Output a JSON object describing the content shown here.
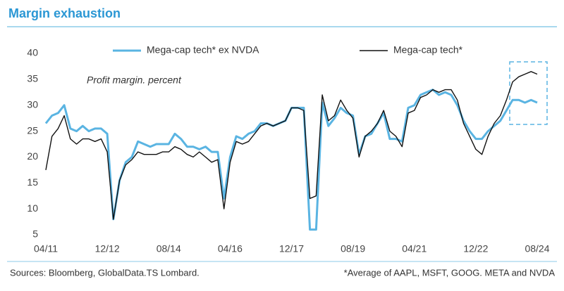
{
  "chart_data": {
    "type": "line",
    "title": "Margin exhaustion",
    "annotation": "Profit margin. percent",
    "source": "Sources: Bloomberg, GlobalData.TS Lombard.",
    "footnote": "*Average of AAPL, MSFT, GOOG. META and NVDA",
    "categories": [
      "04/11",
      null,
      null,
      null,
      null,
      null,
      null,
      null,
      null,
      null,
      "12/12",
      null,
      null,
      null,
      null,
      null,
      null,
      null,
      null,
      null,
      "08/14",
      null,
      null,
      null,
      null,
      null,
      null,
      null,
      null,
      null,
      "04/16",
      null,
      null,
      null,
      null,
      null,
      null,
      null,
      null,
      null,
      "12/17",
      null,
      null,
      null,
      null,
      null,
      null,
      null,
      null,
      null,
      "08/19",
      null,
      null,
      null,
      null,
      null,
      null,
      null,
      null,
      null,
      "04/21",
      null,
      null,
      null,
      null,
      null,
      null,
      null,
      null,
      null,
      "12/22",
      null,
      null,
      null,
      null,
      null,
      null,
      null,
      null,
      null,
      "08/24"
    ],
    "series": [
      {
        "name": "Mega-cap tech* ex NVDA",
        "color": "#5ab4e2",
        "values": [
          26.5,
          28,
          28.5,
          30,
          25.5,
          25,
          26,
          25,
          25.5,
          25.5,
          24.5,
          8,
          15.5,
          19,
          20,
          23,
          22.5,
          22,
          22.5,
          22.5,
          22.5,
          24.5,
          23.5,
          22,
          22,
          21.5,
          22,
          21,
          21,
          12,
          20,
          24,
          23.5,
          24.5,
          25,
          26.5,
          26.5,
          26,
          26.5,
          27,
          29.5,
          29.5,
          29.5,
          6,
          6,
          30.5,
          26,
          27.5,
          29.5,
          28.5,
          28,
          20.5,
          24,
          24.5,
          26.5,
          28.5,
          23.5,
          23.5,
          23,
          29.5,
          30,
          32,
          32.5,
          33,
          32,
          32.5,
          32,
          30,
          27,
          25,
          23.5,
          23.5,
          25,
          26,
          27,
          29,
          31,
          31,
          30.5,
          31,
          30.5
        ]
      },
      {
        "name": "Mega-cap tech*",
        "color": "#111111",
        "values": [
          17.5,
          24,
          25.5,
          28,
          23.5,
          22.5,
          23.5,
          23.5,
          23,
          23.5,
          21,
          8,
          15.5,
          18.5,
          19.5,
          21,
          20.5,
          20.5,
          20.5,
          21,
          21,
          22,
          21.5,
          20.5,
          20,
          21,
          20,
          19,
          19.5,
          10,
          19,
          23,
          22.5,
          23,
          24.5,
          26,
          26.5,
          26,
          26.5,
          27,
          29.5,
          29.5,
          29,
          12,
          12.5,
          32,
          27,
          28,
          31,
          29,
          27.5,
          20,
          24,
          25,
          26.5,
          29,
          25,
          24,
          22,
          28.5,
          29,
          31.5,
          32,
          33,
          32.5,
          33,
          33,
          31,
          26.5,
          24,
          21.5,
          20.5,
          24,
          26.5,
          28,
          31,
          34.5,
          35.5,
          36,
          36.5,
          36
        ]
      }
    ],
    "ylim": [
      5,
      40
    ],
    "yticks": [
      5,
      10,
      15,
      20,
      25,
      30,
      35,
      40
    ],
    "grid": false
  }
}
